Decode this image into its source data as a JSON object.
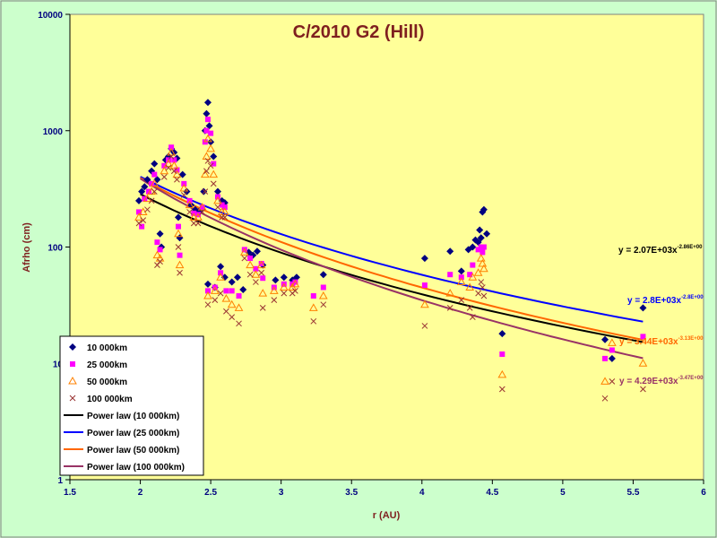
{
  "chart_data": {
    "type": "scatter",
    "title": "C/2010 G2 (Hill)",
    "xlabel": "r (AU)",
    "ylabel": "Afrho (cm)",
    "xlim": [
      1.5,
      6
    ],
    "ylim": [
      1,
      10000
    ],
    "yscale": "log",
    "x_ticks": [
      "1.5",
      "2",
      "2.5",
      "3",
      "3.5",
      "4",
      "4.5",
      "5",
      "5.5",
      "6"
    ],
    "y_ticks": [
      "1",
      "10",
      "100",
      "1000",
      "10000"
    ],
    "grid": false,
    "plot_background": "#ffff99",
    "legend_position": "bottom-left",
    "series": [
      {
        "name": "10 000km",
        "marker": "diamond",
        "color": "#000080",
        "points": [
          [
            1.99,
            250
          ],
          [
            2.01,
            300
          ],
          [
            2.03,
            330
          ],
          [
            2.05,
            380
          ],
          [
            2.08,
            450
          ],
          [
            2.1,
            520
          ],
          [
            2.12,
            380
          ],
          [
            2.14,
            130
          ],
          [
            2.15,
            100
          ],
          [
            2.18,
            560
          ],
          [
            2.2,
            600
          ],
          [
            2.22,
            700
          ],
          [
            2.24,
            650
          ],
          [
            2.26,
            580
          ],
          [
            2.27,
            180
          ],
          [
            2.28,
            120
          ],
          [
            2.3,
            420
          ],
          [
            2.33,
            300
          ],
          [
            2.36,
            230
          ],
          [
            2.39,
            210
          ],
          [
            2.41,
            200
          ],
          [
            2.43,
            210
          ],
          [
            2.45,
            300
          ],
          [
            2.46,
            1000
          ],
          [
            2.47,
            1400
          ],
          [
            2.48,
            1750
          ],
          [
            2.49,
            1100
          ],
          [
            2.5,
            800
          ],
          [
            2.52,
            600
          ],
          [
            2.55,
            300
          ],
          [
            2.58,
            250
          ],
          [
            2.6,
            240
          ],
          [
            2.48,
            48
          ],
          [
            2.53,
            45
          ],
          [
            2.57,
            68
          ],
          [
            2.6,
            55
          ],
          [
            2.65,
            50
          ],
          [
            2.69,
            55
          ],
          [
            2.73,
            43
          ],
          [
            2.77,
            90
          ],
          [
            2.8,
            85
          ],
          [
            2.83,
            92
          ],
          [
            2.87,
            70
          ],
          [
            2.96,
            52
          ],
          [
            3.02,
            55
          ],
          [
            3.08,
            52
          ],
          [
            3.11,
            55
          ],
          [
            3.3,
            58
          ],
          [
            4.02,
            80
          ],
          [
            4.2,
            92
          ],
          [
            4.28,
            62
          ],
          [
            4.33,
            95
          ],
          [
            4.36,
            100
          ],
          [
            4.38,
            115
          ],
          [
            4.4,
            110
          ],
          [
            4.41,
            140
          ],
          [
            4.42,
            120
          ],
          [
            4.43,
            200
          ],
          [
            4.44,
            210
          ],
          [
            4.46,
            130
          ],
          [
            4.57,
            18
          ],
          [
            5.3,
            16
          ],
          [
            5.35,
            11
          ],
          [
            5.57,
            30
          ]
        ]
      },
      {
        "name": "25 000km",
        "marker": "square",
        "color": "#ff00ff",
        "points": [
          [
            1.99,
            200
          ],
          [
            2.01,
            150
          ],
          [
            2.03,
            260
          ],
          [
            2.06,
            300
          ],
          [
            2.08,
            350
          ],
          [
            2.1,
            420
          ],
          [
            2.12,
            110
          ],
          [
            2.14,
            95
          ],
          [
            2.17,
            500
          ],
          [
            2.2,
            560
          ],
          [
            2.22,
            720
          ],
          [
            2.24,
            560
          ],
          [
            2.26,
            460
          ],
          [
            2.27,
            150
          ],
          [
            2.28,
            85
          ],
          [
            2.31,
            350
          ],
          [
            2.35,
            250
          ],
          [
            2.38,
            195
          ],
          [
            2.41,
            190
          ],
          [
            2.44,
            220
          ],
          [
            2.46,
            800
          ],
          [
            2.47,
            1000
          ],
          [
            2.48,
            1250
          ],
          [
            2.5,
            950
          ],
          [
            2.52,
            520
          ],
          [
            2.55,
            270
          ],
          [
            2.58,
            230
          ],
          [
            2.6,
            220
          ],
          [
            2.48,
            42
          ],
          [
            2.53,
            45
          ],
          [
            2.57,
            60
          ],
          [
            2.61,
            42
          ],
          [
            2.65,
            42
          ],
          [
            2.7,
            38
          ],
          [
            2.74,
            95
          ],
          [
            2.78,
            80
          ],
          [
            2.82,
            65
          ],
          [
            2.86,
            72
          ],
          [
            2.87,
            54
          ],
          [
            2.95,
            45
          ],
          [
            3.02,
            48
          ],
          [
            3.08,
            48
          ],
          [
            3.1,
            50
          ],
          [
            3.23,
            38
          ],
          [
            3.3,
            45
          ],
          [
            4.02,
            47
          ],
          [
            4.2,
            58
          ],
          [
            4.28,
            55
          ],
          [
            4.34,
            58
          ],
          [
            4.36,
            70
          ],
          [
            4.4,
            95
          ],
          [
            4.42,
            100
          ],
          [
            4.43,
            90
          ],
          [
            4.44,
            100
          ],
          [
            4.57,
            12
          ],
          [
            5.3,
            11
          ],
          [
            5.35,
            13
          ],
          [
            5.57,
            17
          ]
        ]
      },
      {
        "name": "50 000km",
        "marker": "triangle",
        "color": "#ff8000",
        "points": [
          [
            1.99,
            180
          ],
          [
            2.02,
            200
          ],
          [
            2.05,
            260
          ],
          [
            2.08,
            300
          ],
          [
            2.1,
            350
          ],
          [
            2.12,
            85
          ],
          [
            2.14,
            80
          ],
          [
            2.17,
            450
          ],
          [
            2.2,
            520
          ],
          [
            2.22,
            650
          ],
          [
            2.24,
            500
          ],
          [
            2.26,
            420
          ],
          [
            2.27,
            130
          ],
          [
            2.28,
            70
          ],
          [
            2.31,
            320
          ],
          [
            2.35,
            230
          ],
          [
            2.38,
            180
          ],
          [
            2.41,
            180
          ],
          [
            2.44,
            220
          ],
          [
            2.46,
            420
          ],
          [
            2.47,
            600
          ],
          [
            2.48,
            850
          ],
          [
            2.5,
            700
          ],
          [
            2.52,
            420
          ],
          [
            2.55,
            250
          ],
          [
            2.58,
            200
          ],
          [
            2.6,
            200
          ],
          [
            2.48,
            38
          ],
          [
            2.53,
            42
          ],
          [
            2.57,
            55
          ],
          [
            2.61,
            36
          ],
          [
            2.65,
            32
          ],
          [
            2.7,
            30
          ],
          [
            2.74,
            90
          ],
          [
            2.78,
            70
          ],
          [
            2.82,
            58
          ],
          [
            2.86,
            70
          ],
          [
            2.87,
            40
          ],
          [
            2.95,
            42
          ],
          [
            3.02,
            45
          ],
          [
            3.08,
            45
          ],
          [
            3.1,
            48
          ],
          [
            3.23,
            30
          ],
          [
            3.3,
            38
          ],
          [
            4.02,
            32
          ],
          [
            4.2,
            40
          ],
          [
            4.28,
            50
          ],
          [
            4.34,
            45
          ],
          [
            4.36,
            55
          ],
          [
            4.4,
            60
          ],
          [
            4.42,
            80
          ],
          [
            4.43,
            72
          ],
          [
            4.44,
            65
          ],
          [
            4.57,
            8
          ],
          [
            5.3,
            7
          ],
          [
            5.35,
            15
          ],
          [
            5.57,
            10
          ]
        ]
      },
      {
        "name": "100 000km",
        "marker": "x",
        "color": "#993333",
        "points": [
          [
            1.99,
            160
          ],
          [
            2.02,
            170
          ],
          [
            2.05,
            210
          ],
          [
            2.08,
            250
          ],
          [
            2.1,
            300
          ],
          [
            2.12,
            70
          ],
          [
            2.14,
            75
          ],
          [
            2.17,
            400
          ],
          [
            2.2,
            480
          ],
          [
            2.22,
            600
          ],
          [
            2.24,
            450
          ],
          [
            2.26,
            380
          ],
          [
            2.27,
            100
          ],
          [
            2.28,
            60
          ],
          [
            2.31,
            280
          ],
          [
            2.35,
            200
          ],
          [
            2.38,
            160
          ],
          [
            2.41,
            160
          ],
          [
            2.44,
            200
          ],
          [
            2.46,
            300
          ],
          [
            2.47,
            450
          ],
          [
            2.48,
            550
          ],
          [
            2.5,
            500
          ],
          [
            2.52,
            350
          ],
          [
            2.55,
            220
          ],
          [
            2.58,
            180
          ],
          [
            2.6,
            180
          ],
          [
            2.48,
            32
          ],
          [
            2.53,
            35
          ],
          [
            2.57,
            40
          ],
          [
            2.61,
            28
          ],
          [
            2.65,
            25
          ],
          [
            2.7,
            22
          ],
          [
            2.74,
            80
          ],
          [
            2.78,
            58
          ],
          [
            2.82,
            50
          ],
          [
            2.86,
            60
          ],
          [
            2.87,
            30
          ],
          [
            2.95,
            35
          ],
          [
            3.02,
            40
          ],
          [
            3.08,
            40
          ],
          [
            3.1,
            42
          ],
          [
            3.23,
            23
          ],
          [
            3.3,
            32
          ],
          [
            4.02,
            21
          ],
          [
            4.2,
            30
          ],
          [
            4.28,
            35
          ],
          [
            4.34,
            30
          ],
          [
            4.36,
            25
          ],
          [
            4.4,
            40
          ],
          [
            4.42,
            50
          ],
          [
            4.43,
            45
          ],
          [
            4.44,
            38
          ],
          [
            4.57,
            6
          ],
          [
            5.3,
            5
          ],
          [
            5.35,
            7
          ],
          [
            5.57,
            6
          ]
        ]
      }
    ],
    "fits": [
      {
        "name": "Power law (10 000km)",
        "a": 2070,
        "b": -2.86,
        "x_range": [
          2.0,
          5.57
        ],
        "color": "#000000",
        "equation": "y = 2.07E+03x",
        "exponent": "-2.86E+00"
      },
      {
        "name": "Power law (25 000km)",
        "a": 2800,
        "b": -2.8,
        "x_range": [
          2.0,
          5.57
        ],
        "color": "#0000ff",
        "equation": "y = 2.8E+03x",
        "exponent": "-2.8E+00"
      },
      {
        "name": "Power law (50 000km)",
        "a": 3440,
        "b": -3.13,
        "x_range": [
          2.0,
          5.57
        ],
        "color": "#ff6600",
        "equation": "y = 3.44E+03x",
        "exponent": "-3.13E+00"
      },
      {
        "name": "Power law (100 000km)",
        "a": 4290,
        "b": -3.47,
        "x_range": [
          2.0,
          5.57
        ],
        "color": "#993366",
        "equation": "y = 4.29E+03x",
        "exponent": "-3.47E+00"
      }
    ]
  }
}
